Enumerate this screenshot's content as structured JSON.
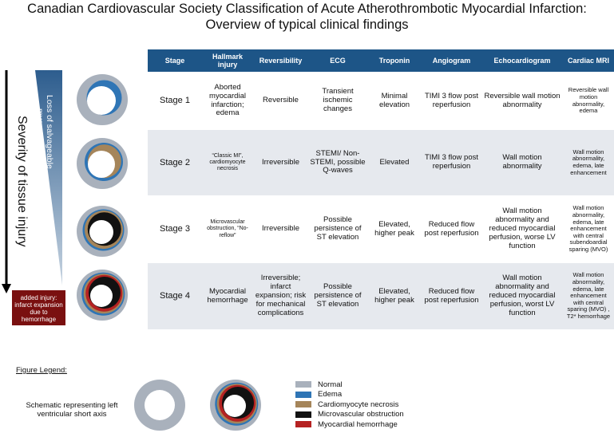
{
  "title": {
    "line1": "Canadian Cardiovascular Society Classification of Acute Atherothrombotic Myocardial Infarction:",
    "line2": "Overview of typical clinical findings"
  },
  "left_panel": {
    "severity": "Severity of tissue injury",
    "loss": "Loss of salvageable myocardium",
    "added": "added injury: infarct expansion due to hemorrhage"
  },
  "table": {
    "header": [
      "Stage",
      "Hallmark injury",
      "Reversibility",
      "ECG",
      "Troponin",
      "Angiogram",
      "Echocardiogram",
      "Cardiac MRI"
    ],
    "rows": [
      [
        "Stage 1",
        "Aborted myocardial infarction; edema",
        "Reversible",
        "Transient ischemic changes",
        "Minimal elevation",
        "TIMI 3 flow post reperfusion",
        "Reversible wall motion abnormality",
        "Reversible wall motion abnormality, edema"
      ],
      [
        "Stage 2",
        "“Classic MI”, cardiomyocyte necrosis",
        "Irreversible",
        "STEMI/ Non-STEMI, possible Q-waves",
        "Elevated",
        "TIMI 3 flow post reperfusion",
        "Wall motion abnormality",
        "Wall motion abnormality, edema, late enhancement"
      ],
      [
        "Stage 3",
        "Microvascular obstruction, “No-reflow”",
        "Irreversible",
        "Possible persistence of ST elevation",
        "Elevated, higher peak",
        "Reduced flow post reperfusion",
        "Wall motion abnormality and reduced myocardial perfusion, worse LV function",
        "Wall motion abnormality, edema, late enhancement with central subendoardial sparing (MVO)"
      ],
      [
        "Stage 4",
        "Myocardial hemorrhage",
        "Irreversible; infarct expansion;  risk for mechanical complications",
        "Possible persistence of ST elevation",
        "Elevated, higher peak",
        "Reduced flow post reperfusion",
        "Wall motion abnormality and reduced myocardial perfusion, worst LV function",
        "Wall motion abnormality, edema, late enhancement with central sparing (MVO) , T2* hemorrhage"
      ]
    ]
  },
  "legend": {
    "title": "Figure Legend:",
    "schematic": "Schematic representing left ventricular short axis",
    "items": [
      {
        "label": "Normal",
        "color": "#a9b1bc"
      },
      {
        "label": "Edema",
        "color": "#2f75b5"
      },
      {
        "label": "Cardiomyocyte necrosis",
        "color": "#a5855a"
      },
      {
        "label": "Microvascular obstruction",
        "color": "#111111"
      },
      {
        "label": "Myocardial hemorrhage",
        "color": "#b52222"
      }
    ]
  }
}
